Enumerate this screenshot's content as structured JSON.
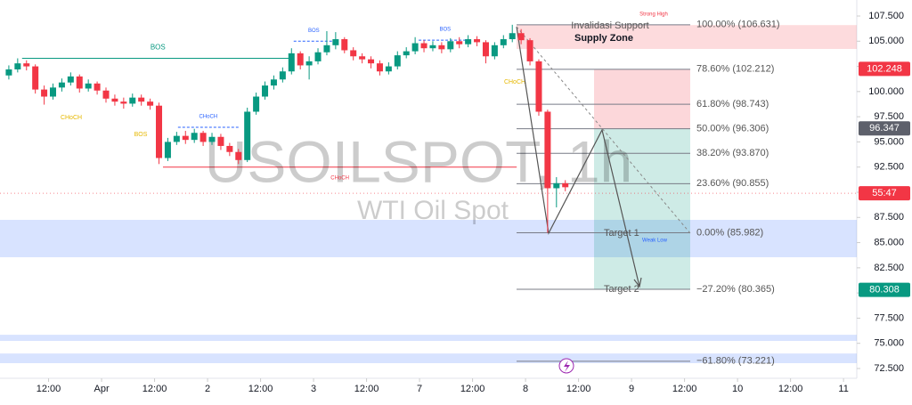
{
  "chart_data": {
    "type": "candlestick",
    "symbol": "USOILSPOT, 1h",
    "symbol_name": "WTI Oil Spot",
    "up_color": "#089981",
    "down_color": "#f23645",
    "xlim": [
      -2,
      192
    ],
    "ylim": [
      72.5,
      107.5
    ],
    "xticks": [
      {
        "value": 9,
        "label": "12:00"
      },
      {
        "value": 21,
        "label": "Apr"
      },
      {
        "value": 33,
        "label": "12:00"
      },
      {
        "value": 45,
        "label": "2"
      },
      {
        "value": 57,
        "label": "12:00"
      },
      {
        "value": 69,
        "label": "3"
      },
      {
        "value": 81,
        "label": "12:00"
      },
      {
        "value": 93,
        "label": "7"
      },
      {
        "value": 105,
        "label": "12:00"
      },
      {
        "value": 117,
        "label": "8"
      },
      {
        "value": 129,
        "label": "12:00"
      },
      {
        "value": 141,
        "label": "9"
      },
      {
        "value": 153,
        "label": "12:00"
      },
      {
        "value": 165,
        "label": "10"
      },
      {
        "value": 177,
        "label": "12:00"
      },
      {
        "value": 189,
        "label": "11"
      }
    ],
    "yticks": [
      {
        "value": 72.5,
        "label": "72.500"
      },
      {
        "value": 75,
        "label": "75.000"
      },
      {
        "value": 77.5,
        "label": "77.500"
      },
      {
        "value": 80,
        "label": "80.000"
      },
      {
        "value": 82.5,
        "label": "82.500"
      },
      {
        "value": 85,
        "label": "85.000"
      },
      {
        "value": 87.5,
        "label": "87.500"
      },
      {
        "value": 90,
        "label": "90.000"
      },
      {
        "value": 92.5,
        "label": "92.500"
      },
      {
        "value": 95,
        "label": "95.000"
      },
      {
        "value": 97.5,
        "label": "97.500"
      },
      {
        "value": 100,
        "label": "100.000"
      },
      {
        "value": 102.5,
        "label": "102.500"
      },
      {
        "value": 105,
        "label": "105.000"
      },
      {
        "value": 107.5,
        "label": "107.500"
      }
    ],
    "hours": [
      0,
      2,
      4,
      6,
      8,
      10,
      12,
      14,
      16,
      18,
      20,
      22,
      24,
      26,
      28,
      30,
      32,
      34,
      36,
      38,
      40,
      42,
      44,
      46,
      48,
      50,
      52,
      54,
      56,
      58,
      60,
      62,
      64,
      66,
      68,
      70,
      72,
      74,
      76,
      78,
      80,
      82,
      84,
      86,
      88,
      90,
      92,
      94,
      96,
      98,
      100,
      102,
      104,
      106,
      108,
      110,
      112,
      114,
      116,
      118,
      120,
      122,
      124,
      126
    ],
    "open": [
      101.6,
      102.2,
      102.8,
      102.5,
      100.2,
      99.5,
      100.4,
      100.9,
      101.5,
      100.3,
      100.8,
      100.1,
      99.3,
      99.0,
      98.8,
      99.4,
      99.0,
      98.6,
      93.4,
      95.0,
      95.6,
      95.2,
      95.9,
      95.0,
      95.5,
      94.6,
      94.0,
      93.2,
      98.0,
      99.5,
      100.6,
      101.2,
      102.0,
      103.8,
      102.6,
      103.0,
      103.9,
      104.6,
      105.2,
      104.1,
      103.5,
      103.2,
      102.8,
      102.0,
      102.5,
      103.6,
      104.0,
      104.8,
      104.3,
      104.6,
      104.2,
      105.0,
      104.7,
      105.2,
      104.9,
      103.5,
      104.6,
      105.2,
      105.8,
      105.1,
      103.0,
      98.0,
      90.4,
      90.9
    ],
    "high": [
      102.6,
      103.3,
      103.1,
      102.7,
      100.6,
      100.8,
      101.3,
      101.9,
      101.7,
      101.2,
      101.0,
      100.4,
      99.7,
      99.4,
      99.8,
      99.7,
      99.3,
      98.9,
      95.4,
      96.0,
      96.1,
      96.3,
      96.1,
      95.9,
      95.8,
      94.9,
      94.3,
      98.4,
      99.9,
      101.0,
      101.6,
      102.4,
      104.3,
      104.0,
      103.5,
      104.3,
      106.0,
      105.9,
      105.4,
      104.4,
      103.8,
      103.5,
      103.1,
      102.9,
      104.0,
      104.4,
      105.4,
      105.1,
      105.0,
      104.9,
      105.3,
      105.4,
      105.6,
      105.5,
      105.1,
      104.9,
      105.6,
      106.631,
      106.2,
      105.3,
      103.2,
      98.2,
      91.5,
      91.2
    ],
    "low": [
      101.2,
      101.9,
      102.1,
      99.8,
      98.7,
      99.2,
      100.0,
      100.6,
      99.9,
      100.0,
      99.7,
      98.9,
      98.6,
      98.3,
      98.5,
      98.6,
      98.2,
      92.8,
      93.1,
      94.7,
      94.8,
      94.9,
      94.6,
      94.7,
      94.2,
      93.6,
      92.8,
      93.0,
      97.7,
      99.2,
      100.2,
      100.9,
      101.7,
      102.2,
      101.2,
      102.7,
      103.6,
      104.2,
      103.8,
      103.1,
      102.8,
      102.3,
      101.6,
      101.7,
      102.2,
      103.3,
      103.7,
      103.9,
      104.0,
      103.8,
      103.9,
      104.3,
      104.4,
      104.5,
      102.8,
      103.2,
      104.3,
      104.9,
      104.7,
      102.6,
      97.6,
      85.982,
      88.5,
      90.1
    ],
    "close": [
      102.2,
      102.8,
      102.5,
      100.2,
      99.5,
      100.4,
      100.9,
      101.5,
      100.3,
      100.8,
      100.1,
      99.3,
      99.0,
      98.8,
      99.4,
      99.0,
      98.6,
      93.4,
      95.0,
      95.6,
      95.2,
      95.9,
      95.0,
      95.5,
      94.6,
      94.0,
      93.2,
      98.0,
      99.5,
      100.6,
      101.2,
      102.0,
      103.8,
      102.6,
      103.0,
      103.9,
      104.6,
      105.2,
      104.1,
      103.5,
      103.2,
      102.8,
      102.0,
      102.5,
      103.6,
      104.0,
      104.8,
      104.3,
      104.6,
      104.2,
      105.0,
      104.7,
      105.2,
      104.9,
      103.5,
      104.6,
      105.2,
      105.8,
      105.1,
      103.0,
      98.0,
      90.4,
      90.9,
      90.5
    ],
    "fib_levels": [
      {
        "value": 106.631,
        "label": "100.00% (106.631)"
      },
      {
        "value": 102.212,
        "label": "78.60% (102.212)"
      },
      {
        "value": 98.743,
        "label": "61.80% (98.743)"
      },
      {
        "value": 96.306,
        "label": "50.00% (96.306)"
      },
      {
        "value": 93.87,
        "label": "38.20% (93.870)"
      },
      {
        "value": 90.855,
        "label": "23.60% (90.855)"
      },
      {
        "value": 85.982,
        "label": "0.00% (85.982)"
      },
      {
        "value": 80.365,
        "label": "−27.20% (80.365)"
      },
      {
        "value": 73.221,
        "label": "−61.80% (73.221)"
      }
    ],
    "supply_zone": {
      "low": 104.23,
      "high": 106.6,
      "title": "Invalidasi Support",
      "label": "Supply Zone",
      "note": "Strong High"
    },
    "demand_zones": [
      [
        83.55,
        87.26
      ],
      [
        75.24,
        75.85
      ],
      [
        73.03,
        73.99
      ]
    ],
    "position": {
      "stop": 102.212,
      "entry": 96.306,
      "target": 80.365
    },
    "targets": [
      "Target 1",
      "Target 2"
    ],
    "weak_low": "Weak Low",
    "structure_lines": [
      {
        "label": "BOS",
        "price": 103.3,
        "from": 3,
        "to": 64.5,
        "color": "#089981"
      },
      {
        "label": "CHoCH",
        "price": 96.45,
        "from": 38.3,
        "to": 52,
        "color": "#2962ff"
      },
      {
        "label": "BOS",
        "price": 105.0,
        "from": 64.5,
        "to": 73.6,
        "color": "#2962ff"
      },
      {
        "label": "BOS",
        "price": 105.1,
        "from": 92.8,
        "to": 104.8,
        "color": "#2962ff"
      },
      {
        "label": "CHoCH",
        "price": 92.5,
        "from": 34.9,
        "to": 115,
        "color": "#f23645"
      }
    ],
    "swing_labels": [
      "CHoCH",
      "BOS",
      "CHoCH"
    ],
    "price_tags": [
      {
        "value": 102.248,
        "label": "102.248",
        "color": "#f23645"
      },
      {
        "value": 96.347,
        "label": "96.347",
        "color": "#5d606b"
      },
      {
        "value": 89.9,
        "label": "55:47",
        "color": "#f23645"
      },
      {
        "value": 80.308,
        "label": "80.308",
        "color": "#089981"
      }
    ]
  }
}
